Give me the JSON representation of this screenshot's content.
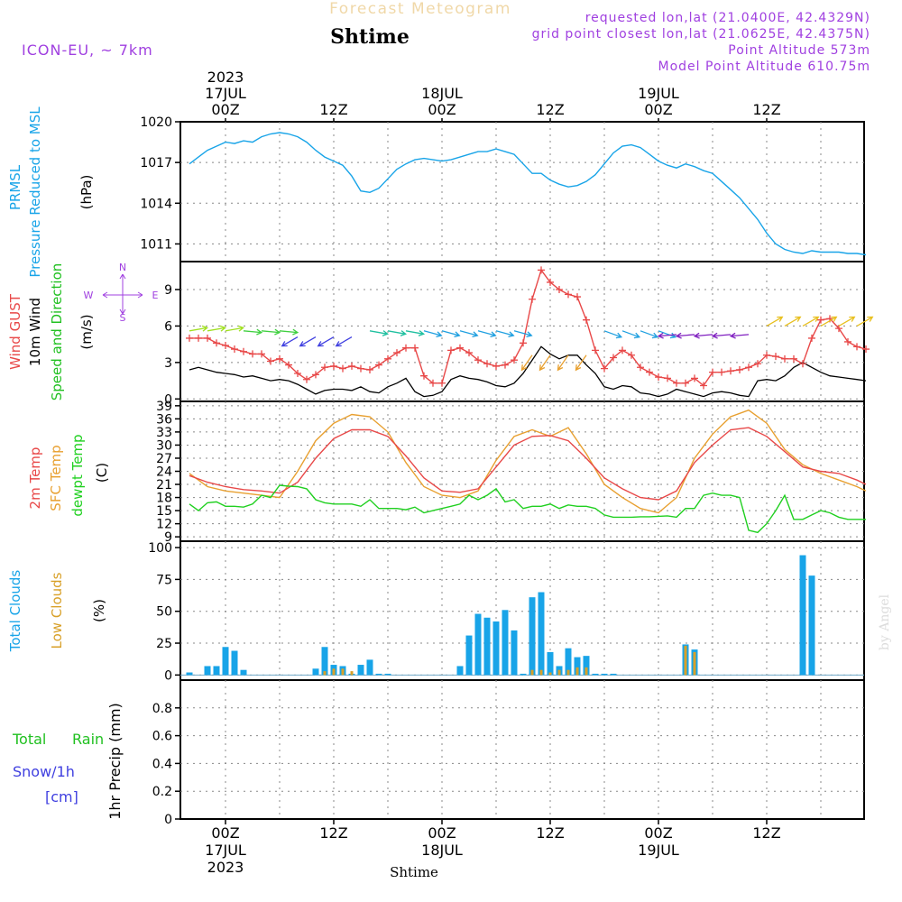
{
  "header": {
    "model": "ICON-EU, ~ 7km",
    "title": "Forecast Meteogram",
    "location": "Shtime",
    "requested": "requested lon,lat (21.0400E, 42.4329N)",
    "grid_point": "grid point closest lon,lat (21.0625E, 42.4375N)",
    "point_alt": "Point Altitude 573m",
    "model_alt": "Model Point Altitude 610.75m",
    "watermark": "by Angel",
    "footer_location": "Shtime"
  },
  "time_axis": {
    "top_ticks": [
      {
        "label": "00Z",
        "hour": 0,
        "date_line1": "2023",
        "date_line2": "17JUL"
      },
      {
        "label": "12Z",
        "hour": 12
      },
      {
        "label": "00Z",
        "hour": 24,
        "date_line2": "18JUL"
      },
      {
        "label": "12Z",
        "hour": 36
      },
      {
        "label": "00Z",
        "hour": 48,
        "date_line2": "19JUL"
      },
      {
        "label": "12Z",
        "hour": 60
      }
    ],
    "bottom_ticks": [
      {
        "label": "00Z",
        "hour": 0,
        "date_line1": "17JUL",
        "date_line2": "2023"
      },
      {
        "label": "12Z",
        "hour": 12
      },
      {
        "label": "00Z",
        "hour": 24,
        "date_line1": "18JUL"
      },
      {
        "label": "12Z",
        "hour": 36
      },
      {
        "label": "00Z",
        "hour": 48,
        "date_line1": "19JUL"
      },
      {
        "label": "12Z",
        "hour": 60
      }
    ]
  },
  "colors": {
    "pressure": "#18a4e8",
    "gust": "#e84848",
    "wind10m": "#000000",
    "t2m": "#e84848",
    "sfc": "#e8a030",
    "dewpt": "#20d020",
    "total_clouds": "#18a4e8",
    "low_clouds": "#d8a028",
    "rain": "#20c020",
    "snow": "#4040e0",
    "purple": "#a040e0",
    "title": "#f0d8a8",
    "watermark": "#dcdcdc"
  },
  "chart_data": [
    {
      "type": "line",
      "id": "pressure",
      "labels": {
        "l1": "PRMSL",
        "l2": "Pressure Reduced to MSL",
        "unit": "(hPa)"
      },
      "ylim": [
        1009.7,
        1020
      ],
      "yticks": [
        1011,
        1014,
        1017,
        1020
      ],
      "grid": true,
      "series": [
        {
          "x": [
            -4,
            -3,
            -2,
            -1,
            0,
            1,
            2,
            3,
            4,
            5,
            6,
            7,
            8,
            9,
            10,
            11,
            12,
            13,
            14,
            15,
            16,
            17,
            18,
            19,
            20,
            21,
            22,
            23,
            24,
            25,
            26,
            27,
            28,
            29,
            30,
            31,
            32,
            33,
            34,
            35,
            36,
            37,
            38,
            39,
            40,
            41,
            42,
            43,
            44,
            45,
            46,
            47,
            48,
            49,
            50,
            51,
            52,
            53,
            54,
            55,
            56,
            57,
            58,
            59,
            60,
            61,
            62,
            63,
            64,
            65,
            66,
            67,
            68,
            69,
            70,
            71
          ],
          "values": [
            1016.9,
            1017.4,
            1017.9,
            1018.2,
            1018.5,
            1018.4,
            1018.6,
            1018.5,
            1018.9,
            1019.1,
            1019.2,
            1019.1,
            1018.9,
            1018.5,
            1017.9,
            1017.4,
            1017.1,
            1016.8,
            1016.0,
            1014.9,
            1014.8,
            1015.1,
            1015.8,
            1016.5,
            1016.9,
            1017.2,
            1017.3,
            1017.2,
            1017.1,
            1017.2,
            1017.4,
            1017.6,
            1017.8,
            1017.8,
            1018.0,
            1017.8,
            1017.6,
            1016.9,
            1016.2,
            1016.2,
            1015.7,
            1015.4,
            1015.2,
            1015.3,
            1015.6,
            1016.1,
            1016.9,
            1017.7,
            1018.2,
            1018.3,
            1018.1,
            1017.6,
            1017.1,
            1016.8,
            1016.6,
            1016.9,
            1016.7,
            1016.4,
            1016.2,
            1015.6,
            1015.0,
            1014.4,
            1013.6,
            1012.8,
            1011.8,
            1011.0,
            1010.6,
            1010.4,
            1010.3,
            1010.5,
            1010.4,
            1010.4,
            1010.4,
            1010.3,
            1010.3,
            1010.2
          ]
        }
      ]
    },
    {
      "type": "line",
      "id": "wind",
      "labels": {
        "l1": "Wind GUST",
        "l2": "10m Wind",
        "l3": "Speed and Direction",
        "unit": "(m/s)",
        "compass_n": "N",
        "compass_s": "S",
        "compass_w": "W",
        "compass_e": "E"
      },
      "ylim": [
        -0.2,
        11.3
      ],
      "yticks": [
        0,
        3,
        6,
        9
      ],
      "grid": true,
      "series": [
        {
          "name": "gust",
          "x": [
            -4,
            -3,
            -2,
            -1,
            0,
            1,
            2,
            3,
            4,
            5,
            6,
            7,
            8,
            9,
            10,
            11,
            12,
            13,
            14,
            15,
            16,
            17,
            18,
            19,
            20,
            21,
            22,
            23,
            24,
            25,
            26,
            27,
            28,
            29,
            30,
            31,
            32,
            33,
            34,
            35,
            36,
            37,
            38,
            39,
            40,
            41,
            42,
            43,
            44,
            45,
            46,
            47,
            48,
            49,
            50,
            51,
            52,
            53,
            54,
            55,
            56,
            57,
            58,
            59,
            60,
            61,
            62,
            63,
            64,
            65,
            66,
            67,
            68,
            69,
            70,
            71
          ],
          "values": [
            5.0,
            5.0,
            5.0,
            4.6,
            4.4,
            4.1,
            3.9,
            3.7,
            3.7,
            3.1,
            3.3,
            2.8,
            2.1,
            1.6,
            2.0,
            2.6,
            2.7,
            2.5,
            2.7,
            2.5,
            2.4,
            2.8,
            3.3,
            3.8,
            4.2,
            4.2,
            1.9,
            1.3,
            1.3,
            4.0,
            4.2,
            3.8,
            3.2,
            2.9,
            2.7,
            2.8,
            3.2,
            4.6,
            8.2,
            10.6,
            9.6,
            9.0,
            8.6,
            8.4,
            6.5,
            4.0,
            2.5,
            3.4,
            4.0,
            3.6,
            2.6,
            2.2,
            1.8,
            1.7,
            1.3,
            1.3,
            1.7,
            1.1,
            2.2,
            2.2,
            2.3,
            2.4,
            2.6,
            2.9,
            3.6,
            3.5,
            3.3,
            3.3,
            2.9,
            5.0,
            6.5,
            6.6,
            5.8,
            4.7,
            4.3,
            4.1
          ]
        },
        {
          "name": "wind10m",
          "x": [
            -4,
            -3,
            -2,
            -1,
            0,
            1,
            2,
            3,
            4,
            5,
            6,
            7,
            8,
            9,
            10,
            11,
            12,
            13,
            14,
            15,
            16,
            17,
            18,
            19,
            20,
            21,
            22,
            23,
            24,
            25,
            26,
            27,
            28,
            29,
            30,
            31,
            32,
            33,
            34,
            35,
            36,
            37,
            38,
            39,
            40,
            41,
            42,
            43,
            44,
            45,
            46,
            47,
            48,
            49,
            50,
            51,
            52,
            53,
            54,
            55,
            56,
            57,
            58,
            59,
            60,
            61,
            62,
            63,
            64,
            65,
            66,
            67,
            68,
            69,
            70,
            71
          ],
          "values": [
            2.4,
            2.6,
            2.4,
            2.2,
            2.1,
            2.0,
            1.8,
            1.9,
            1.7,
            1.5,
            1.6,
            1.5,
            1.2,
            0.8,
            0.4,
            0.7,
            0.8,
            0.8,
            0.7,
            1.0,
            0.6,
            0.5,
            1.0,
            1.3,
            1.7,
            0.6,
            0.2,
            0.3,
            0.6,
            1.6,
            1.9,
            1.7,
            1.6,
            1.4,
            1.1,
            1.0,
            1.3,
            2.1,
            3.2,
            4.3,
            3.7,
            3.3,
            3.6,
            3.6,
            2.8,
            2.1,
            1.0,
            0.8,
            1.1,
            1.0,
            0.5,
            0.4,
            0.2,
            0.4,
            0.8,
            0.6,
            0.4,
            0.2,
            0.5,
            0.6,
            0.5,
            0.3,
            0.2,
            1.5,
            1.6,
            1.5,
            1.9,
            2.6,
            3.0,
            2.6,
            2.2,
            1.9,
            1.8,
            1.7,
            1.6,
            1.5
          ]
        }
      ]
    },
    {
      "type": "line",
      "id": "temperature",
      "labels": {
        "l1": "2m Temp",
        "l2": "SFC Temp",
        "l3": "dewpt Temp",
        "unit": "(C)"
      },
      "ylim": [
        8,
        40
      ],
      "yticks": [
        9,
        12,
        15,
        18,
        21,
        24,
        27,
        30,
        33,
        36,
        39
      ],
      "grid": true,
      "series": [
        {
          "name": "t2m",
          "x": [
            -4,
            -2,
            0,
            2,
            4,
            6,
            8,
            10,
            12,
            14,
            16,
            18,
            20,
            22,
            24,
            26,
            28,
            30,
            32,
            34,
            36,
            38,
            40,
            42,
            44,
            46,
            48,
            50,
            52,
            54,
            56,
            58,
            60,
            62,
            64,
            66,
            68,
            70,
            71
          ],
          "values": [
            23.0,
            21.5,
            20.5,
            19.8,
            19.5,
            19.0,
            21.5,
            27.0,
            31.5,
            33.5,
            33.5,
            32.0,
            27.5,
            22.5,
            19.5,
            19.2,
            20.0,
            25.0,
            30.0,
            32.0,
            32.2,
            31.0,
            27.0,
            22.5,
            20.0,
            18.0,
            17.5,
            19.5,
            26.0,
            30.0,
            33.5,
            34.0,
            32.0,
            28.5,
            25.0,
            24.0,
            23.5,
            22.0,
            21.0
          ]
        },
        {
          "name": "sfc",
          "x": [
            -4,
            -2,
            0,
            2,
            4,
            6,
            8,
            10,
            12,
            14,
            16,
            18,
            20,
            22,
            24,
            26,
            28,
            30,
            32,
            34,
            36,
            38,
            40,
            42,
            44,
            46,
            48,
            50,
            52,
            54,
            56,
            58,
            60,
            62,
            64,
            66,
            68,
            70,
            71
          ],
          "values": [
            23.5,
            20.5,
            19.5,
            19.0,
            18.5,
            18.0,
            24.0,
            31.0,
            35.0,
            37.0,
            36.5,
            33.0,
            26.0,
            20.5,
            18.5,
            18.0,
            19.5,
            26.5,
            32.0,
            33.5,
            32.0,
            34.0,
            28.0,
            21.0,
            18.0,
            15.5,
            14.5,
            18.0,
            27.0,
            32.5,
            36.5,
            38.0,
            35.0,
            29.0,
            25.5,
            23.5,
            22.0,
            20.5,
            19.5
          ]
        },
        {
          "name": "dewpt",
          "x": [
            -4,
            -3,
            -2,
            -1,
            0,
            1,
            2,
            3,
            4,
            5,
            6,
            7,
            8,
            9,
            10,
            11,
            12,
            13,
            14,
            15,
            16,
            17,
            18,
            19,
            20,
            21,
            22,
            23,
            24,
            25,
            26,
            27,
            28,
            29,
            30,
            31,
            32,
            33,
            34,
            35,
            36,
            37,
            38,
            39,
            40,
            41,
            42,
            43,
            44,
            45,
            46,
            47,
            48,
            49,
            50,
            51,
            52,
            53,
            54,
            55,
            56,
            57,
            58,
            59,
            60,
            61,
            62,
            63,
            64,
            65,
            66,
            67,
            68,
            69,
            70,
            71
          ],
          "values": [
            16.5,
            15.0,
            16.8,
            17.0,
            16.0,
            16.0,
            15.8,
            16.5,
            18.5,
            18.0,
            20.8,
            20.6,
            20.5,
            20.0,
            17.5,
            16.8,
            16.5,
            16.5,
            16.5,
            16.0,
            17.5,
            15.5,
            15.5,
            15.5,
            15.2,
            15.8,
            14.5,
            15.0,
            15.5,
            16.0,
            16.5,
            18.5,
            17.5,
            18.5,
            20.0,
            17.0,
            17.5,
            15.5,
            16.0,
            16.0,
            16.5,
            15.5,
            16.3,
            16.0,
            16.0,
            15.5,
            14.0,
            13.5,
            13.5,
            13.5,
            13.6,
            13.6,
            13.7,
            13.8,
            13.5,
            15.5,
            15.5,
            18.5,
            19.0,
            18.5,
            18.5,
            18.0,
            10.5,
            10.0,
            12.0,
            15.0,
            18.5,
            13.0,
            13.0,
            14.0,
            15.0,
            14.5,
            13.5,
            13.0,
            13.0,
            13.0
          ]
        }
      ]
    },
    {
      "type": "bar",
      "id": "clouds",
      "labels": {
        "l1": "Total Clouds",
        "l2": "Low Clouds",
        "unit": "(%)"
      },
      "ylim": [
        -4,
        105
      ],
      "yticks": [
        0,
        25,
        50,
        75,
        100
      ],
      "grid": true,
      "series": [
        {
          "name": "total",
          "x": [
            -4,
            -2,
            -1,
            0,
            1,
            2,
            10,
            11,
            12,
            13,
            14,
            15,
            16,
            17,
            18,
            26,
            27,
            28,
            29,
            30,
            31,
            32,
            33,
            34,
            35,
            36,
            37,
            38,
            39,
            40,
            41,
            42,
            43,
            51,
            52,
            64,
            65
          ],
          "values": [
            2,
            7,
            7,
            22,
            19,
            4,
            5,
            22,
            8,
            7,
            1,
            8,
            12,
            1,
            1,
            7,
            31,
            48,
            45,
            42,
            51,
            35,
            1,
            61,
            65,
            18,
            7,
            21,
            14,
            15,
            1,
            1,
            1,
            24,
            20,
            94,
            78
          ]
        },
        {
          "name": "low",
          "x": [
            11,
            12,
            13,
            14,
            34,
            35,
            36,
            37,
            38,
            39,
            40,
            51,
            52
          ],
          "values": [
            3,
            5,
            5,
            3,
            4,
            4,
            2,
            4,
            4,
            6,
            6,
            23,
            18
          ]
        }
      ]
    },
    {
      "type": "bar",
      "id": "precip",
      "labels": {
        "l1": "Total",
        "l1b": "Rain",
        "l2": "Snow/1h",
        "l3": "[cm]",
        "unit": "1hr Precip (mm)"
      },
      "ylim": [
        0,
        1.0
      ],
      "yticks": [
        0,
        0.2,
        0.4,
        0.6,
        0.8
      ],
      "ytick_labels": [
        "0",
        "0.2",
        "0.4",
        "0.6",
        "0.8"
      ],
      "grid": true,
      "series": [
        {
          "name": "rain",
          "x": [],
          "values": []
        }
      ]
    }
  ]
}
